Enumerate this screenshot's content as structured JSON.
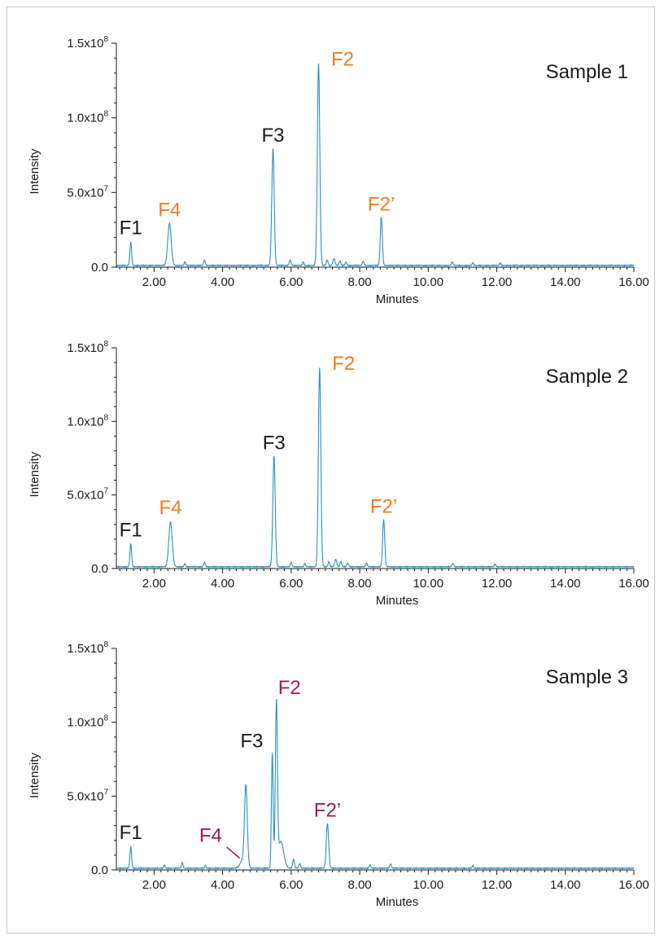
{
  "colors": {
    "trace": "#2a8fc4",
    "axis": "#1a1a1a",
    "black_label": "#1a1a1a",
    "orange_label": "#ef7d22",
    "magenta_label": "#9b1c5a"
  },
  "chart_data": [
    {
      "type": "line",
      "title": "Sample 1",
      "xlabel": "Minutes",
      "ylabel": "Intensity",
      "xlim": [
        0.9,
        16.0
      ],
      "ylim": [
        0,
        150000000.0
      ],
      "xticks": [
        "2.00",
        "4.00",
        "6.00",
        "8.00",
        "10.00",
        "12.00",
        "14.00",
        "16.00"
      ],
      "yticks": [
        {
          "base": "0.0",
          "exp": ""
        },
        {
          "base": "5.0x10",
          "exp": "7"
        },
        {
          "base": "1.0x10",
          "exp": "8"
        },
        {
          "base": "1.5x10",
          "exp": "8"
        }
      ],
      "baseline": 1200000.0,
      "peaks": [
        {
          "x": 1.32,
          "y": 15500000.0,
          "w": 0.025
        },
        {
          "x": 2.45,
          "y": 28000000.0,
          "w": 0.05
        },
        {
          "x": 2.9,
          "y": 2400000.0,
          "w": 0.02
        },
        {
          "x": 3.47,
          "y": 3400000.0,
          "w": 0.025
        },
        {
          "x": 5.47,
          "y": 78000000.0,
          "w": 0.035
        },
        {
          "x": 5.97,
          "y": 3600000.0,
          "w": 0.025
        },
        {
          "x": 6.35,
          "y": 2300000.0,
          "w": 0.02
        },
        {
          "x": 6.8,
          "y": 135000000.0,
          "w": 0.035
        },
        {
          "x": 7.05,
          "y": 3500000.0,
          "w": 0.025
        },
        {
          "x": 7.25,
          "y": 4500000.0,
          "w": 0.03
        },
        {
          "x": 7.42,
          "y": 3000000.0,
          "w": 0.025
        },
        {
          "x": 7.6,
          "y": 2200000.0,
          "w": 0.025
        },
        {
          "x": 8.1,
          "y": 2600000.0,
          "w": 0.025
        },
        {
          "x": 8.63,
          "y": 32000000.0,
          "w": 0.03
        },
        {
          "x": 10.7,
          "y": 2200000.0,
          "w": 0.025
        },
        {
          "x": 11.3,
          "y": 1800000.0,
          "w": 0.02
        },
        {
          "x": 12.1,
          "y": 1600000.0,
          "w": 0.02
        }
      ],
      "annotations": [
        {
          "text": "F1",
          "x": 1.32,
          "y": 22000000.0,
          "color": "black"
        },
        {
          "text": "F4",
          "x": 2.45,
          "y": 34000000.0,
          "color": "orange"
        },
        {
          "text": "F3",
          "x": 5.47,
          "y": 84000000.0,
          "color": "black"
        },
        {
          "text": "F2",
          "x": 7.5,
          "y": 135000000.0,
          "color": "orange"
        },
        {
          "text": "F2’",
          "x": 8.63,
          "y": 38000000.0,
          "color": "orange"
        }
      ]
    },
    {
      "type": "line",
      "title": "Sample 2",
      "xlabel": "Minutes",
      "ylabel": "Intensity",
      "xlim": [
        0.9,
        16.0
      ],
      "ylim": [
        0,
        150000000.0
      ],
      "xticks": [
        "2.00",
        "4.00",
        "6.00",
        "8.00",
        "10.00",
        "12.00",
        "14.00",
        "16.00"
      ],
      "yticks": [
        {
          "base": "0.0",
          "exp": ""
        },
        {
          "base": "5.0x10",
          "exp": "7"
        },
        {
          "base": "1.0x10",
          "exp": "8"
        },
        {
          "base": "1.5x10",
          "exp": "8"
        }
      ],
      "baseline": 1200000.0,
      "peaks": [
        {
          "x": 1.32,
          "y": 15500000.0,
          "w": 0.025
        },
        {
          "x": 2.48,
          "y": 30500000.0,
          "w": 0.05
        },
        {
          "x": 2.9,
          "y": 2200000.0,
          "w": 0.02
        },
        {
          "x": 3.47,
          "y": 3000000.0,
          "w": 0.025
        },
        {
          "x": 5.5,
          "y": 75000000.0,
          "w": 0.035
        },
        {
          "x": 6.0,
          "y": 3000000.0,
          "w": 0.025
        },
        {
          "x": 6.4,
          "y": 2300000.0,
          "w": 0.02
        },
        {
          "x": 6.83,
          "y": 135000000.0,
          "w": 0.035
        },
        {
          "x": 7.1,
          "y": 3500000.0,
          "w": 0.025
        },
        {
          "x": 7.3,
          "y": 5000000.0,
          "w": 0.03
        },
        {
          "x": 7.45,
          "y": 3500000.0,
          "w": 0.025
        },
        {
          "x": 7.65,
          "y": 2400000.0,
          "w": 0.025
        },
        {
          "x": 8.2,
          "y": 2400000.0,
          "w": 0.025
        },
        {
          "x": 8.7,
          "y": 32000000.0,
          "w": 0.03
        },
        {
          "x": 10.72,
          "y": 2400000.0,
          "w": 0.025
        },
        {
          "x": 11.95,
          "y": 1800000.0,
          "w": 0.02
        }
      ],
      "annotations": [
        {
          "text": "F1",
          "x": 1.32,
          "y": 22000000.0,
          "color": "black"
        },
        {
          "text": "F4",
          "x": 2.48,
          "y": 37000000.0,
          "color": "orange"
        },
        {
          "text": "F3",
          "x": 5.5,
          "y": 81000000.0,
          "color": "black"
        },
        {
          "text": "F2",
          "x": 7.53,
          "y": 135000000.0,
          "color": "orange"
        },
        {
          "text": "F2’",
          "x": 8.7,
          "y": 38000000.0,
          "color": "orange"
        }
      ]
    },
    {
      "type": "line",
      "title": "Sample 3",
      "xlabel": "Minutes",
      "ylabel": "Intensity",
      "xlim": [
        0.9,
        16.0
      ],
      "ylim": [
        0,
        150000000.0
      ],
      "xticks": [
        "2.00",
        "4.00",
        "6.00",
        "8.00",
        "10.00",
        "12.00",
        "14.00",
        "16.00"
      ],
      "yticks": [
        {
          "base": "0.0",
          "exp": ""
        },
        {
          "base": "5.0x10",
          "exp": "7"
        },
        {
          "base": "1.0x10",
          "exp": "8"
        },
        {
          "base": "1.5x10",
          "exp": "8"
        }
      ],
      "baseline": 1200000.0,
      "peaks": [
        {
          "x": 1.32,
          "y": 14500000.0,
          "w": 0.025
        },
        {
          "x": 2.3,
          "y": 2000000.0,
          "w": 0.02
        },
        {
          "x": 2.82,
          "y": 4000000.0,
          "w": 0.02
        },
        {
          "x": 3.5,
          "y": 2000000.0,
          "w": 0.02
        },
        {
          "x": 4.68,
          "y": 53000000.0,
          "w": 0.04
        },
        {
          "x": 4.6,
          "y": 6000000.0,
          "w": 0.08
        },
        {
          "x": 5.45,
          "y": 78000000.0,
          "w": 0.025
        },
        {
          "x": 5.57,
          "y": 110000000.0,
          "w": 0.03
        },
        {
          "x": 5.7,
          "y": 18000000.0,
          "w": 0.08
        },
        {
          "x": 6.07,
          "y": 6000000.0,
          "w": 0.025
        },
        {
          "x": 6.25,
          "y": 3000000.0,
          "w": 0.025
        },
        {
          "x": 7.06,
          "y": 30000000.0,
          "w": 0.035
        },
        {
          "x": 8.3,
          "y": 2200000.0,
          "w": 0.025
        },
        {
          "x": 8.9,
          "y": 2800000.0,
          "w": 0.025
        },
        {
          "x": 11.3,
          "y": 1800000.0,
          "w": 0.02
        }
      ],
      "annotations": [
        {
          "text": "F1",
          "x": 1.32,
          "y": 21000000.0,
          "color": "black"
        },
        {
          "text": "F4",
          "x": 3.65,
          "y": 19000000.0,
          "color": "magenta"
        },
        {
          "text": "F3",
          "x": 4.85,
          "y": 83000000.0,
          "color": "black"
        },
        {
          "text": "F2",
          "x": 5.95,
          "y": 119000000.0,
          "color": "magenta"
        },
        {
          "text": "F2’",
          "x": 7.06,
          "y": 36000000.0,
          "color": "magenta"
        }
      ],
      "pointer": {
        "from": [
          4.12,
          15500000.0
        ],
        "to": [
          4.5,
          8000000.0
        ]
      }
    }
  ]
}
